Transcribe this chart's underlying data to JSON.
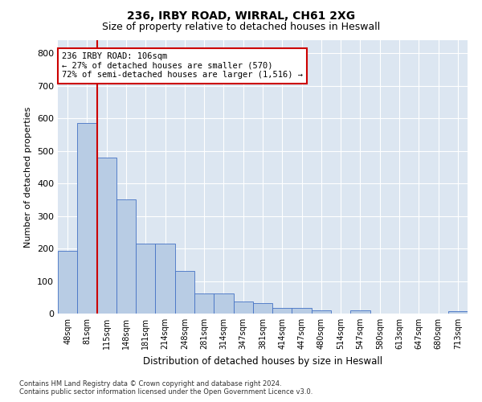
{
  "title_line1": "236, IRBY ROAD, WIRRAL, CH61 2XG",
  "title_line2": "Size of property relative to detached houses in Heswall",
  "xlabel": "Distribution of detached houses by size in Heswall",
  "ylabel": "Number of detached properties",
  "categories": [
    "48sqm",
    "81sqm",
    "115sqm",
    "148sqm",
    "181sqm",
    "214sqm",
    "248sqm",
    "281sqm",
    "314sqm",
    "347sqm",
    "381sqm",
    "414sqm",
    "447sqm",
    "480sqm",
    "514sqm",
    "547sqm",
    "580sqm",
    "613sqm",
    "647sqm",
    "680sqm",
    "713sqm"
  ],
  "values": [
    192,
    585,
    480,
    352,
    215,
    215,
    130,
    62,
    62,
    38,
    32,
    17,
    17,
    10,
    0,
    10,
    0,
    0,
    0,
    0,
    8
  ],
  "bar_color": "#b8cce4",
  "bar_edge_color": "#4472c4",
  "bg_color": "#dce6f1",
  "grid_color": "#ffffff",
  "annotation_text": "236 IRBY ROAD: 106sqm\n← 27% of detached houses are smaller (570)\n72% of semi-detached houses are larger (1,516) →",
  "vline_x_idx": 1,
  "vline_color": "#cc0000",
  "annotation_box_color": "#cc0000",
  "ylim": [
    0,
    840
  ],
  "yticks": [
    0,
    100,
    200,
    300,
    400,
    500,
    600,
    700,
    800
  ],
  "footer_line1": "Contains HM Land Registry data © Crown copyright and database right 2024.",
  "footer_line2": "Contains public sector information licensed under the Open Government Licence v3.0."
}
